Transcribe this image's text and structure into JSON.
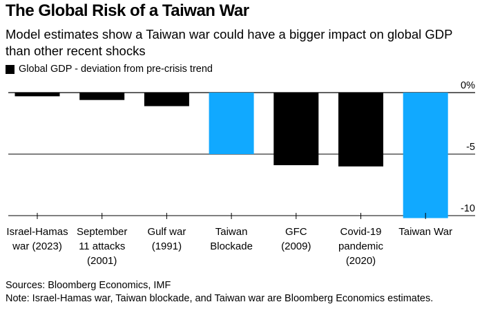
{
  "title": "The Global Risk of a Taiwan War",
  "subtitle": "Model estimates show a Taiwan war could have a bigger impact on global GDP than other recent shocks",
  "legend": {
    "label": "Global GDP - deviation from pre-crisis trend",
    "color": "#000000"
  },
  "colors": {
    "default": "#000000",
    "highlight": "#11a9ff",
    "axis": "#000000",
    "grid": "#000000"
  },
  "chart_data": {
    "type": "bar",
    "categories": [
      [
        "Israel-Hamas",
        "war (2023)"
      ],
      [
        "September",
        "11 attacks",
        "(2001)"
      ],
      [
        "Gulf war",
        "(1991)"
      ],
      [
        "Taiwan",
        "Blockade"
      ],
      [
        "GFC",
        "(2009)"
      ],
      [
        "Covid-19",
        "pandemic",
        "(2020)"
      ],
      [
        "Taiwan War"
      ]
    ],
    "values": [
      -0.3,
      -0.6,
      -1.1,
      -5.0,
      -5.9,
      -6.0,
      -10.2
    ],
    "highlight": [
      false,
      false,
      false,
      true,
      false,
      false,
      true
    ],
    "ylim": [
      -10.5,
      0.5
    ],
    "yticks": [
      0,
      -5,
      -10
    ],
    "ytick_labels": [
      "0%",
      "-5",
      "-10"
    ],
    "series": [
      {
        "name": "Global GDP - deviation from pre-crisis trend"
      }
    ]
  },
  "footer": {
    "sources": "Sources: Bloomberg Economics, IMF",
    "note": "Note: Israel-Hamas war, Taiwan blockade, and Taiwan war are Bloomberg Economics estimates."
  }
}
